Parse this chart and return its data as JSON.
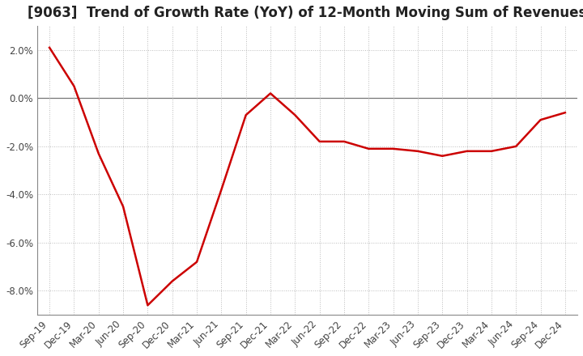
{
  "title": "[9063]  Trend of Growth Rate (YoY) of 12-Month Moving Sum of Revenues",
  "x_labels": [
    "Sep-19",
    "Dec-19",
    "Mar-20",
    "Jun-20",
    "Sep-20",
    "Dec-20",
    "Mar-21",
    "Jun-21",
    "Sep-21",
    "Dec-21",
    "Mar-22",
    "Jun-22",
    "Sep-22",
    "Dec-22",
    "Mar-23",
    "Jun-23",
    "Sep-23",
    "Dec-23",
    "Mar-24",
    "Jun-24",
    "Sep-24",
    "Dec-24"
  ],
  "y_values": [
    0.021,
    0.005,
    -0.023,
    -0.045,
    -0.086,
    -0.076,
    -0.068,
    -0.038,
    -0.007,
    0.002,
    -0.007,
    -0.018,
    -0.018,
    -0.021,
    -0.021,
    -0.022,
    -0.024,
    -0.022,
    -0.022,
    -0.02,
    -0.009,
    -0.006
  ],
  "line_color": "#cc0000",
  "line_width": 1.8,
  "ylim": [
    -0.09,
    0.03
  ],
  "yticks": [
    -0.08,
    -0.06,
    -0.04,
    -0.02,
    0.0,
    0.02
  ],
  "ytick_labels": [
    "-8.0%",
    "-6.0%",
    "-4.0%",
    "-2.0%",
    "0.0%",
    "2.0%"
  ],
  "grid_color": "#bbbbbb",
  "zero_line_color": "#777777",
  "background_color": "#ffffff",
  "title_fontsize": 12,
  "tick_fontsize": 8.5
}
